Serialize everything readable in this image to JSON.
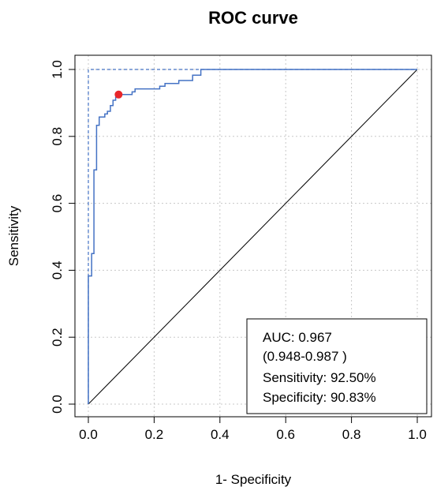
{
  "chart_data": {
    "type": "line",
    "title": "ROC curve",
    "xlabel": "1- Specificity",
    "ylabel": "Sensitivity",
    "xlim": [
      0,
      1
    ],
    "ylim": [
      0,
      1
    ],
    "grid": true,
    "x_ticks": [
      "0.0",
      "0.2",
      "0.4",
      "0.6",
      "0.8",
      "1.0"
    ],
    "y_ticks": [
      "0.0",
      "0.2",
      "0.4",
      "0.6",
      "0.8",
      "1.0"
    ],
    "colors": {
      "roc": "#4472c4",
      "point": "#e8262a",
      "diagonal": "#000000",
      "grid": "#c8c8c8"
    },
    "series": [
      {
        "values": [
          [
            0.0,
            0.0
          ],
          [
            0.0,
            0.383
          ],
          [
            0.01,
            0.383
          ],
          [
            0.01,
            0.45
          ],
          [
            0.017,
            0.45
          ],
          [
            0.017,
            0.7
          ],
          [
            0.025,
            0.7
          ],
          [
            0.025,
            0.833
          ],
          [
            0.033,
            0.833
          ],
          [
            0.033,
            0.858
          ],
          [
            0.05,
            0.858
          ],
          [
            0.05,
            0.867
          ],
          [
            0.058,
            0.867
          ],
          [
            0.058,
            0.875
          ],
          [
            0.067,
            0.875
          ],
          [
            0.067,
            0.892
          ],
          [
            0.075,
            0.892
          ],
          [
            0.075,
            0.908
          ],
          [
            0.083,
            0.908
          ],
          [
            0.083,
            0.917
          ],
          [
            0.092,
            0.917
          ],
          [
            0.092,
            0.925
          ],
          [
            0.133,
            0.925
          ],
          [
            0.133,
            0.933
          ],
          [
            0.142,
            0.933
          ],
          [
            0.142,
            0.942
          ],
          [
            0.217,
            0.942
          ],
          [
            0.217,
            0.95
          ],
          [
            0.233,
            0.95
          ],
          [
            0.233,
            0.958
          ],
          [
            0.275,
            0.958
          ],
          [
            0.275,
            0.967
          ],
          [
            0.317,
            0.967
          ],
          [
            0.317,
            0.983
          ],
          [
            0.342,
            0.983
          ],
          [
            0.342,
            1.0
          ],
          [
            1.0,
            1.0
          ]
        ]
      }
    ],
    "diagonal": [
      [
        0,
        0
      ],
      [
        1,
        1
      ]
    ],
    "optimal_point": {
      "x": 0.092,
      "y": 0.925
    },
    "annotation": {
      "placement": "bottom-right",
      "lines": [
        "AUC: 0.967",
        "(0.948-0.987 )",
        "Sensitivity: 92.50%",
        "Specificity: 90.83%"
      ]
    }
  }
}
